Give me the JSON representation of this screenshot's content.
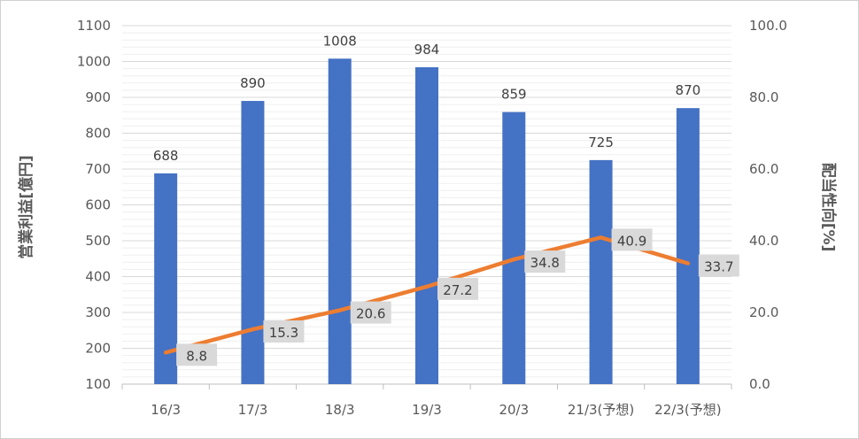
{
  "chart_data": {
    "type": "bar+line",
    "title": "",
    "categories": [
      "16/3",
      "17/3",
      "18/3",
      "19/3",
      "20/3",
      "21/3(予想)",
      "22/3(予想)"
    ],
    "series": [
      {
        "name": "",
        "type": "bar",
        "axis": "left",
        "color": "#4472C4",
        "values": [
          688,
          890,
          1008,
          984,
          859,
          725,
          870
        ],
        "labels": [
          "688",
          "890",
          "1008",
          "984",
          "859",
          "725",
          "870"
        ]
      },
      {
        "name": "",
        "type": "line",
        "axis": "right",
        "color": "#ED7D31",
        "values": [
          8.8,
          15.3,
          20.6,
          27.2,
          34.8,
          40.9,
          33.7
        ],
        "labels": [
          "8.8",
          "15.3",
          "20.6",
          "27.2",
          "34.8",
          "40.9",
          "33.7"
        ]
      }
    ],
    "y_left": {
      "label": "営業利益[億円]",
      "min": 100,
      "max": 1100,
      "ticks": [
        "100",
        "200",
        "300",
        "400",
        "500",
        "600",
        "700",
        "800",
        "900",
        "1000",
        "1100"
      ]
    },
    "y_right": {
      "label": "配当性向[%]",
      "min": 0,
      "max": 100,
      "ticks": [
        "0.0",
        "20.0",
        "40.0",
        "60.0",
        "80.0",
        "100.0"
      ]
    },
    "grid": true,
    "legend": "none"
  }
}
